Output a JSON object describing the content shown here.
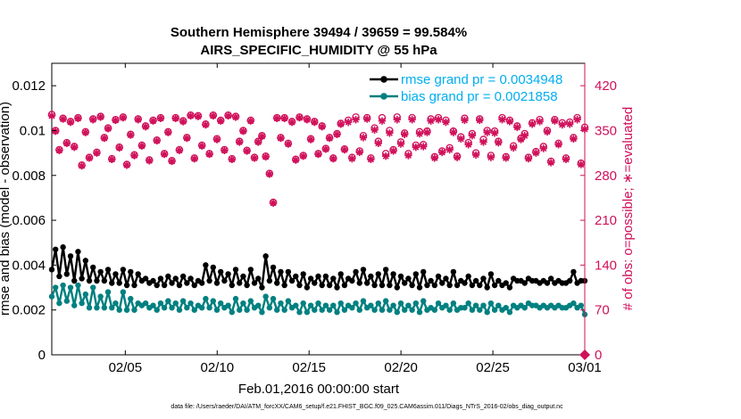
{
  "chart_data": {
    "type": "line",
    "title": "Southern Hemisphere 39494 / 39659 = 99.584%",
    "subtitle": "AIRS_SPECIFIC_HUMIDITY @ 55 hPa",
    "xlabel": "Feb.01,2016 00:00:00 start",
    "ylabel": "rmse and bias (model - observation)",
    "y2label": "# of obs: o=possible; ∗=evaluated",
    "footnote": "data file: /Users/raeder/DAI/ATM_forcXX/CAM6_setup/f.e21.FHIST_BGC.f09_025.CAM6assim.011/Diags_NTrS_2016-02/obs_diag_output.nc",
    "xlim": [
      1,
      30
    ],
    "ylim": [
      0,
      0.013
    ],
    "y2lim": [
      0,
      455
    ],
    "x_ticks": [
      {
        "value": 5,
        "label": "02/05"
      },
      {
        "value": 10,
        "label": "02/10"
      },
      {
        "value": 15,
        "label": "02/15"
      },
      {
        "value": 20,
        "label": "02/20"
      },
      {
        "value": 25,
        "label": "02/25"
      },
      {
        "value": 30,
        "label": "03/01"
      }
    ],
    "y_ticks": [
      {
        "value": 0,
        "label": "0"
      },
      {
        "value": 0.002,
        "label": "0.002"
      },
      {
        "value": 0.004,
        "label": "0.004"
      },
      {
        "value": 0.006,
        "label": "0.006"
      },
      {
        "value": 0.008,
        "label": "0.008"
      },
      {
        "value": 0.01,
        "label": "0.01"
      },
      {
        "value": 0.012,
        "label": "0.012"
      }
    ],
    "y2_ticks": [
      {
        "value": 0,
        "label": "0"
      },
      {
        "value": 70,
        "label": "70"
      },
      {
        "value": 140,
        "label": "140"
      },
      {
        "value": 210,
        "label": "210"
      },
      {
        "value": 280,
        "label": "280"
      },
      {
        "value": 350,
        "label": "350"
      },
      {
        "value": 420,
        "label": "420"
      }
    ],
    "grid": false,
    "legend_position": "top-right",
    "colors": {
      "rmse": "#000000",
      "bias": "#008080",
      "obs": "#d0105a",
      "legend_text": "#00aeef"
    },
    "series": [
      {
        "name": "rmse grand pr = 0.0034948",
        "axis": "left",
        "marker": "filled-circle",
        "values": [
          0.0038,
          0.0047,
          0.0035,
          0.0048,
          0.0036,
          0.0044,
          0.0033,
          0.0046,
          0.0034,
          0.0042,
          0.0033,
          0.0039,
          0.0033,
          0.0037,
          0.0033,
          0.0038,
          0.0032,
          0.0036,
          0.0032,
          0.0038,
          0.0031,
          0.0037,
          0.0031,
          0.0036,
          0.0033,
          0.0034,
          0.0032,
          0.0033,
          0.0031,
          0.0034,
          0.0031,
          0.0035,
          0.0032,
          0.0034,
          0.0031,
          0.0035,
          0.0032,
          0.0034,
          0.0031,
          0.0033,
          0.0032,
          0.004,
          0.0033,
          0.0039,
          0.0032,
          0.0037,
          0.0033,
          0.0036,
          0.0031,
          0.0038,
          0.0032,
          0.0035,
          0.0031,
          0.0038,
          0.0032,
          0.0034,
          0.003,
          0.0044,
          0.0033,
          0.0039,
          0.0032,
          0.0037,
          0.0031,
          0.0037,
          0.0033,
          0.0035,
          0.0031,
          0.0036,
          0.003,
          0.0034,
          0.0032,
          0.0035,
          0.0031,
          0.0035,
          0.0031,
          0.0034,
          0.003,
          0.0036,
          0.0031,
          0.0034,
          0.0033,
          0.0037,
          0.0032,
          0.0038,
          0.0032,
          0.0035,
          0.0031,
          0.0036,
          0.0031,
          0.0038,
          0.0031,
          0.0036,
          0.003,
          0.0035,
          0.0032,
          0.0034,
          0.0031,
          0.0036,
          0.003,
          0.0037,
          0.0031,
          0.0033,
          0.0031,
          0.0035,
          0.0032,
          0.0034,
          0.0031,
          0.0037,
          0.0031,
          0.0033,
          0.0032,
          0.0035,
          0.0031,
          0.0033,
          0.0031,
          0.0034,
          0.003,
          0.0036,
          0.0031,
          0.0033,
          0.0031,
          0.0032,
          0.003,
          0.0034,
          0.0033,
          0.0033,
          0.0032,
          0.0034,
          0.0033,
          0.0033,
          0.0032,
          0.0033,
          0.0032,
          0.0034,
          0.0032,
          0.0033,
          0.0032,
          0.0032,
          0.0033,
          0.0037,
          0.0032,
          0.0033,
          0.0033
        ]
      },
      {
        "name": "bias grand pr = 0.0021858",
        "axis": "left",
        "marker": "filled-circle",
        "values": [
          0.0026,
          0.003,
          0.0023,
          0.0031,
          0.0024,
          0.003,
          0.0022,
          0.0031,
          0.0023,
          0.0027,
          0.0021,
          0.003,
          0.0021,
          0.0026,
          0.0021,
          0.0028,
          0.0021,
          0.0023,
          0.002,
          0.0028,
          0.002,
          0.0025,
          0.002,
          0.0023,
          0.0022,
          0.0023,
          0.0021,
          0.0022,
          0.002,
          0.0023,
          0.0021,
          0.0024,
          0.0021,
          0.0023,
          0.002,
          0.0024,
          0.0021,
          0.0023,
          0.002,
          0.0022,
          0.0021,
          0.0025,
          0.0021,
          0.0024,
          0.002,
          0.0023,
          0.0021,
          0.0022,
          0.0019,
          0.0025,
          0.002,
          0.0023,
          0.002,
          0.0024,
          0.0021,
          0.0022,
          0.0019,
          0.0026,
          0.0021,
          0.0025,
          0.002,
          0.0023,
          0.002,
          0.0024,
          0.0021,
          0.0022,
          0.0019,
          0.0023,
          0.0019,
          0.0022,
          0.002,
          0.0023,
          0.002,
          0.0022,
          0.002,
          0.0022,
          0.0019,
          0.0023,
          0.002,
          0.0022,
          0.0021,
          0.0023,
          0.002,
          0.0024,
          0.0021,
          0.0022,
          0.002,
          0.0023,
          0.002,
          0.0024,
          0.002,
          0.0022,
          0.0019,
          0.0023,
          0.002,
          0.0022,
          0.002,
          0.0023,
          0.0019,
          0.0024,
          0.002,
          0.0021,
          0.002,
          0.0023,
          0.0021,
          0.0022,
          0.002,
          0.0023,
          0.002,
          0.0021,
          0.0021,
          0.0023,
          0.002,
          0.0022,
          0.002,
          0.0022,
          0.0019,
          0.0023,
          0.002,
          0.0022,
          0.002,
          0.0021,
          0.0019,
          0.0022,
          0.0021,
          0.0022,
          0.0021,
          0.0023,
          0.0022,
          0.0022,
          0.0021,
          0.0022,
          0.0021,
          0.0022,
          0.0021,
          0.0022,
          0.0021,
          0.0021,
          0.0022,
          0.0023,
          0.0021,
          0.0022,
          0.0018
        ]
      },
      {
        "name": "evaluated",
        "axis": "right",
        "marker": "asterisk",
        "values": [
          373,
          349,
          319,
          368,
          330,
          363,
          324,
          369,
          295,
          347,
          307,
          367,
          315,
          371,
          338,
          353,
          305,
          366,
          323,
          370,
          296,
          343,
          311,
          367,
          326,
          356,
          303,
          365,
          334,
          369,
          313,
          347,
          302,
          369,
          319,
          364,
          338,
          373,
          306,
          372,
          326,
          359,
          313,
          373,
          336,
          365,
          319,
          373,
          305,
          371,
          332,
          349,
          318,
          365,
          307,
          332,
          341,
          309,
          282,
          237,
          369,
          338,
          369,
          329,
          363,
          304,
          370,
          310,
          367,
          336,
          363,
          313,
          356,
          321,
          338,
          306,
          344,
          360,
          320,
          363,
          306,
          367,
          316,
          339,
          368,
          305,
          351,
          330,
          365,
          310,
          346,
          318,
          367,
          329,
          344,
          311,
          367,
          324,
          345,
          325,
          347,
          365,
          307,
          367,
          316,
          363,
          320,
          347,
          308,
          337,
          366,
          328,
          342,
          312,
          366,
          332,
          347,
          308,
          346,
          331,
          367,
          307,
          364,
          323,
          355,
          336,
          342,
          306,
          360,
          315,
          364,
          322,
          348,
          300,
          365,
          328,
          359,
          305,
          360,
          337,
          367,
          297,
          352
        ]
      },
      {
        "name": "possible",
        "axis": "right",
        "marker": "open-circle",
        "values": [
          375,
          350,
          320,
          369,
          331,
          364,
          325,
          370,
          296,
          348,
          308,
          368,
          316,
          372,
          339,
          354,
          306,
          367,
          324,
          371,
          297,
          344,
          312,
          368,
          327,
          357,
          304,
          366,
          335,
          370,
          314,
          348,
          303,
          370,
          320,
          365,
          339,
          374,
          307,
          373,
          327,
          360,
          314,
          374,
          337,
          366,
          320,
          374,
          306,
          372,
          333,
          350,
          319,
          366,
          308,
          333,
          342,
          310,
          283,
          238,
          370,
          339,
          370,
          330,
          364,
          305,
          371,
          311,
          368,
          337,
          364,
          314,
          357,
          322,
          339,
          307,
          345,
          361,
          321,
          366,
          308,
          371,
          318,
          342,
          370,
          307,
          354,
          333,
          370,
          314,
          350,
          320,
          371,
          332,
          346,
          314,
          370,
          327,
          348,
          328,
          349,
          368,
          309,
          370,
          318,
          366,
          323,
          349,
          310,
          340,
          369,
          331,
          345,
          315,
          368,
          336,
          350,
          311,
          349,
          333,
          370,
          309,
          366,
          326,
          357,
          338,
          345,
          308,
          362,
          317,
          367,
          325,
          350,
          302,
          367,
          330,
          362,
          307,
          363,
          339,
          370,
          299,
          355
        ]
      }
    ]
  }
}
